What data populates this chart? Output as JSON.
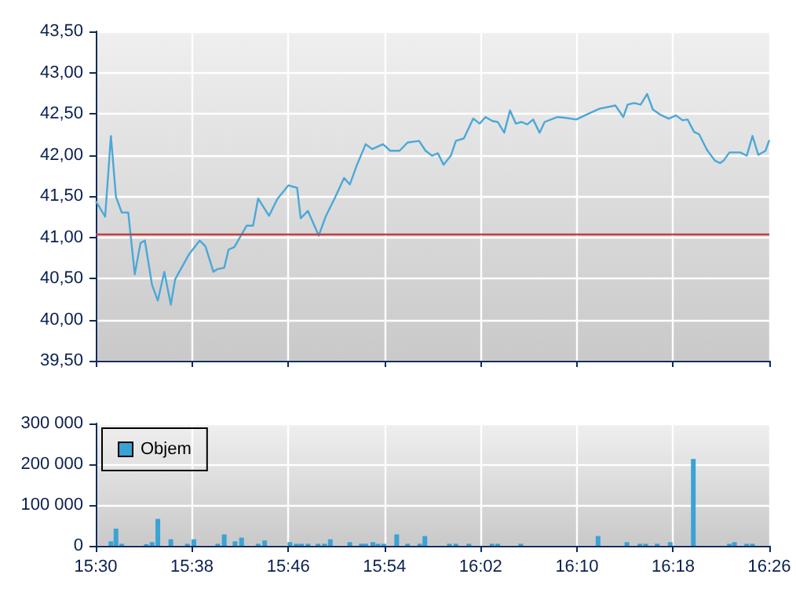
{
  "chart_data": [
    {
      "type": "line",
      "xlim": [
        15.5,
        16.4333
      ],
      "xticks": [
        {
          "value": 15.5,
          "label": null
        },
        {
          "value": 15.6333,
          "label": null
        },
        {
          "value": 15.7667,
          "label": null
        },
        {
          "value": 15.9,
          "label": null
        },
        {
          "value": 16.0333,
          "label": null
        },
        {
          "value": 16.1667,
          "label": null
        },
        {
          "value": 16.3,
          "label": null
        },
        {
          "value": 16.4333,
          "label": null
        }
      ],
      "ylim": [
        39.5,
        43.5
      ],
      "yticks": [
        {
          "value": 39.5,
          "label": "39,50"
        },
        {
          "value": 40,
          "label": "40,00"
        },
        {
          "value": 40.5,
          "label": "40,50"
        },
        {
          "value": 41,
          "label": "41,00"
        },
        {
          "value": 41.5,
          "label": "41,50"
        },
        {
          "value": 42,
          "label": "42,00"
        },
        {
          "value": 42.5,
          "label": "42,50"
        },
        {
          "value": 43,
          "label": "43,00"
        },
        {
          "value": 43.5,
          "label": "43,50"
        }
      ],
      "tick_labels": "y",
      "grid": true,
      "legend": false,
      "marker": "none",
      "ref_lines": [
        {
          "axis": "y",
          "value": 41.03,
          "color": "#c04040"
        }
      ],
      "series": [
        {
          "color": "#4aa8d8",
          "x": [
            15.5,
            15.513,
            15.521,
            15.528,
            15.536,
            15.545,
            15.554,
            15.562,
            15.568,
            15.578,
            15.586,
            15.595,
            15.604,
            15.61,
            15.629,
            15.644,
            15.652,
            15.663,
            15.668,
            15.678,
            15.684,
            15.692,
            15.709,
            15.718,
            15.725,
            15.74,
            15.752,
            15.767,
            15.779,
            15.784,
            15.794,
            15.809,
            15.819,
            15.832,
            15.844,
            15.852,
            15.862,
            15.874,
            15.883,
            15.898,
            15.908,
            15.921,
            15.932,
            15.948,
            15.957,
            15.966,
            15.974,
            15.982,
            15.992,
            15.999,
            16.01,
            16.023,
            16.032,
            16.04,
            16.05,
            16.057,
            16.066,
            16.074,
            16.082,
            16.09,
            16.098,
            16.106,
            16.115,
            16.122,
            16.14,
            16.151,
            16.166,
            16.18,
            16.198,
            16.22,
            16.231,
            16.237,
            16.246,
            16.255,
            16.264,
            16.272,
            16.282,
            16.294,
            16.304,
            16.313,
            16.32,
            16.329,
            16.336,
            16.347,
            16.358,
            16.365,
            16.37,
            16.378,
            16.386,
            16.393,
            16.402,
            16.41,
            16.418,
            16.428,
            16.4333
          ],
          "values": [
            41.44,
            41.25,
            42.23,
            41.49,
            41.3,
            41.3,
            40.55,
            40.93,
            40.96,
            40.42,
            40.23,
            40.58,
            40.18,
            40.49,
            40.79,
            40.96,
            40.89,
            40.58,
            40.61,
            40.63,
            40.85,
            40.88,
            41.14,
            41.14,
            41.47,
            41.26,
            41.47,
            41.63,
            41.6,
            41.23,
            41.32,
            41.02,
            41.26,
            41.49,
            41.72,
            41.64,
            41.88,
            42.13,
            42.07,
            42.13,
            42.05,
            42.05,
            42.15,
            42.17,
            42.05,
            41.99,
            42.02,
            41.88,
            41.99,
            42.17,
            42.2,
            42.44,
            42.38,
            42.46,
            42.41,
            42.4,
            42.27,
            42.54,
            42.38,
            42.4,
            42.37,
            42.43,
            42.27,
            42.4,
            42.46,
            42.45,
            42.43,
            42.49,
            42.56,
            42.6,
            42.46,
            42.61,
            42.63,
            42.61,
            42.74,
            42.55,
            42.49,
            42.44,
            42.48,
            42.42,
            42.43,
            42.28,
            42.25,
            42.06,
            41.93,
            41.9,
            41.93,
            42.03,
            42.03,
            42.03,
            41.99,
            42.23,
            42.0,
            42.05,
            42.18
          ]
        }
      ]
    },
    {
      "type": "bar",
      "xlim": [
        15.5,
        16.4333
      ],
      "xticks": [
        {
          "value": 15.5,
          "label": "15:30"
        },
        {
          "value": 15.6333,
          "label": "15:38"
        },
        {
          "value": 15.7667,
          "label": "15:46"
        },
        {
          "value": 15.9,
          "label": "15:54"
        },
        {
          "value": 16.0333,
          "label": "16:02"
        },
        {
          "value": 16.1667,
          "label": "16:10"
        },
        {
          "value": 16.3,
          "label": "16:18"
        },
        {
          "value": 16.4333,
          "label": "16:26"
        }
      ],
      "ylim": [
        0,
        300000
      ],
      "yticks": [
        0,
        {
          "value": 100000,
          "label": "100 000"
        },
        {
          "value": 200000,
          "label": "200 000"
        },
        {
          "value": 300000,
          "label": "300 000"
        }
      ],
      "grid": true,
      "legend": "top left",
      "series": [
        {
          "name": "Objem",
          "color": "#3aa3d6",
          "x": [
            15.521,
            15.528,
            15.536,
            15.57,
            15.578,
            15.586,
            15.604,
            15.627,
            15.636,
            15.669,
            15.678,
            15.693,
            15.702,
            15.725,
            15.734,
            15.769,
            15.778,
            15.785,
            15.794,
            15.808,
            15.817,
            15.825,
            15.852,
            15.868,
            15.874,
            15.884,
            15.891,
            15.899,
            15.917,
            15.932,
            15.949,
            15.956,
            15.99,
            15.999,
            16.017,
            16.049,
            16.057,
            16.089,
            16.196,
            16.236,
            16.254,
            16.262,
            16.278,
            16.296,
            16.328,
            16.378,
            16.385,
            16.402,
            16.41
          ],
          "values": [
            11000,
            42000,
            5000,
            4000,
            9000,
            66000,
            16000,
            5000,
            16000,
            5000,
            28000,
            11000,
            20000,
            5000,
            13000,
            9000,
            5000,
            5000,
            5000,
            5000,
            5000,
            16000,
            9000,
            5000,
            5000,
            9000,
            5000,
            5000,
            28000,
            5000,
            5000,
            24000,
            5000,
            5000,
            5000,
            5000,
            5000,
            5000,
            24000,
            9000,
            5000,
            5000,
            5000,
            9000,
            213000,
            5000,
            9000,
            5000,
            5000
          ]
        }
      ]
    }
  ]
}
